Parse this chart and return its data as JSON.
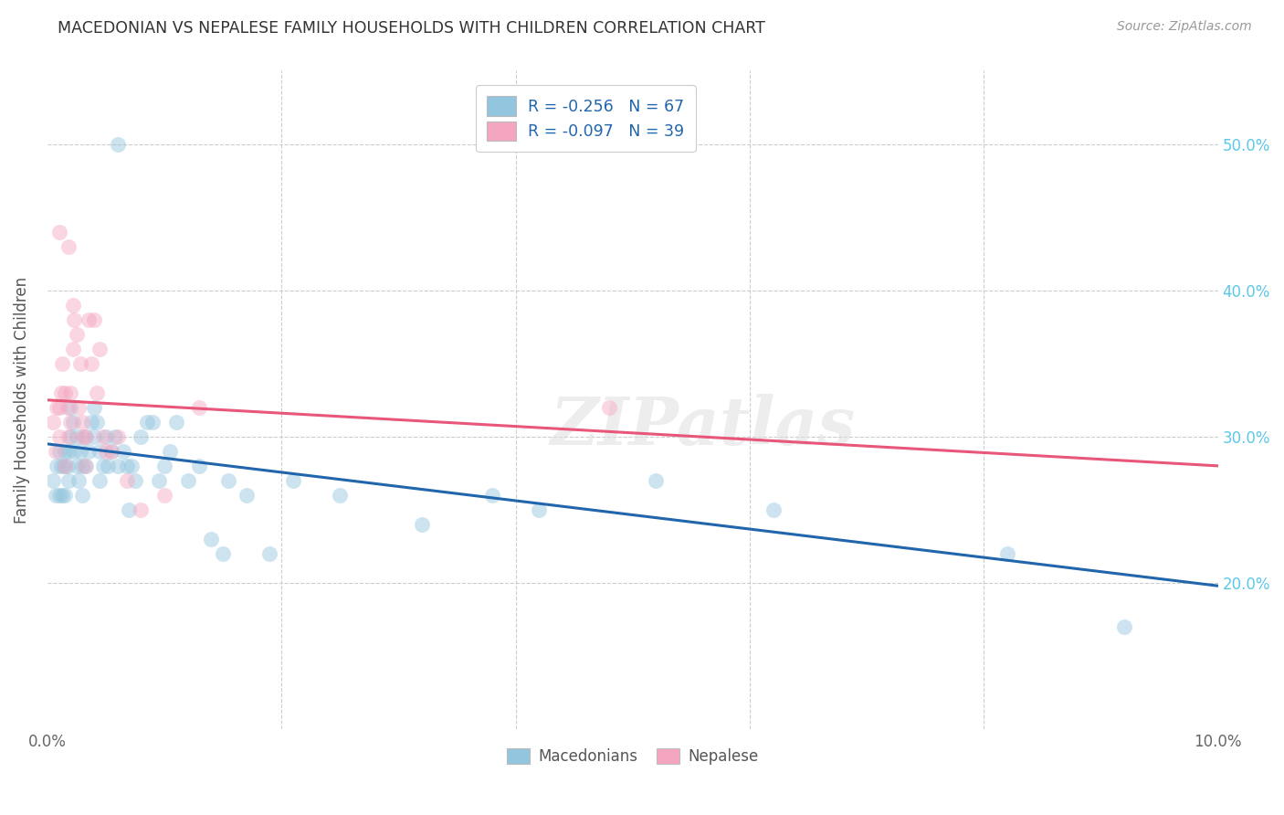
{
  "title": "MACEDONIAN VS NEPALESE FAMILY HOUSEHOLDS WITH CHILDREN CORRELATION CHART",
  "source": "Source: ZipAtlas.com",
  "ylabel": "Family Households with Children",
  "legend_label1": "Macedonians",
  "legend_label2": "Nepalese",
  "R1": -0.256,
  "N1": 67,
  "R2": -0.097,
  "N2": 39,
  "color1": "#92c5de",
  "color2": "#f4a6c0",
  "line_color1": "#2166ac",
  "line_color2": "#e8567a",
  "xlim": [
    0.0,
    10.0
  ],
  "ylim": [
    10.0,
    55.0
  ],
  "xtick_left": 0.0,
  "xtick_right": 10.0,
  "yticks": [
    20.0,
    30.0,
    40.0,
    50.0
  ],
  "background": "#ffffff",
  "blue_x": [
    0.05,
    0.07,
    0.08,
    0.1,
    0.1,
    0.12,
    0.13,
    0.14,
    0.15,
    0.15,
    0.17,
    0.18,
    0.18,
    0.2,
    0.2,
    0.22,
    0.23,
    0.25,
    0.25,
    0.27,
    0.28,
    0.3,
    0.3,
    0.32,
    0.33,
    0.35,
    0.38,
    0.4,
    0.4,
    0.42,
    0.45,
    0.45,
    0.48,
    0.5,
    0.52,
    0.55,
    0.58,
    0.6,
    0.65,
    0.68,
    0.7,
    0.72,
    0.75,
    0.8,
    0.85,
    0.9,
    0.95,
    1.0,
    1.05,
    1.1,
    1.2,
    1.3,
    1.4,
    1.55,
    1.7,
    1.9,
    2.1,
    2.5,
    3.2,
    3.8,
    4.2,
    5.2,
    6.2,
    8.2,
    9.2,
    1.5,
    0.6
  ],
  "blue_y": [
    27,
    26,
    28,
    26,
    29,
    28,
    26,
    28,
    29,
    26,
    28,
    29,
    27,
    32,
    30,
    31,
    29,
    28,
    30,
    27,
    29,
    28,
    26,
    30,
    28,
    29,
    31,
    32,
    30,
    31,
    29,
    27,
    28,
    30,
    28,
    29,
    30,
    28,
    29,
    28,
    25,
    28,
    27,
    30,
    31,
    31,
    27,
    28,
    29,
    31,
    27,
    28,
    23,
    27,
    26,
    22,
    27,
    26,
    24,
    26,
    25,
    27,
    25,
    22,
    17,
    22,
    50
  ],
  "pink_x": [
    0.05,
    0.07,
    0.08,
    0.1,
    0.1,
    0.12,
    0.13,
    0.15,
    0.15,
    0.17,
    0.18,
    0.2,
    0.2,
    0.22,
    0.23,
    0.25,
    0.27,
    0.28,
    0.3,
    0.3,
    0.32,
    0.33,
    0.35,
    0.38,
    0.4,
    0.42,
    0.45,
    0.48,
    0.5,
    0.55,
    0.6,
    0.68,
    0.8,
    1.0,
    1.3,
    4.8,
    0.18,
    0.1,
    0.22
  ],
  "pink_y": [
    31,
    29,
    32,
    30,
    32,
    33,
    35,
    33,
    28,
    32,
    30,
    33,
    31,
    36,
    38,
    37,
    32,
    35,
    31,
    30,
    28,
    30,
    38,
    35,
    38,
    33,
    36,
    30,
    29,
    29,
    30,
    27,
    25,
    26,
    32,
    32,
    43,
    44,
    39
  ],
  "blue_trendline_x": [
    0.0,
    10.0
  ],
  "blue_trendline_y": [
    29.5,
    19.8
  ],
  "pink_trendline_x": [
    0.0,
    10.0
  ],
  "pink_trendline_y": [
    32.5,
    28.0
  ],
  "watermark": "ZIPatlas",
  "marker_size": 150,
  "marker_alpha": 0.45
}
